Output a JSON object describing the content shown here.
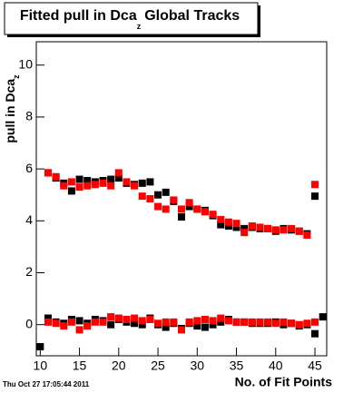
{
  "chart_data": {
    "type": "scatter",
    "title": "Fitted pull in Dca",
    "title_subscript": "z",
    "title_rest": "Global Tracks",
    "y_label": "pull in Dca",
    "y_label_subscript": "z",
    "x_label": "No. of Fit Points",
    "timestamp": "Thu Oct 27 17:05:44 2011",
    "xlim": [
      9.5,
      46.5
    ],
    "ylim": [
      -1.2,
      10.9
    ],
    "xticks": [
      10,
      15,
      20,
      25,
      30,
      35,
      40,
      45
    ],
    "yticks": [
      0,
      2,
      4,
      6,
      8,
      10
    ],
    "series": [
      {
        "color": "#000000",
        "x": [
          10,
          11,
          12,
          13,
          14,
          15,
          16,
          17,
          18,
          19,
          20,
          21,
          22,
          23,
          24,
          25,
          26,
          27,
          28,
          29,
          30,
          31,
          32,
          33,
          34,
          35,
          36,
          37,
          38,
          39,
          40,
          41,
          42,
          43,
          44,
          45,
          46
        ],
        "values": [
          -0.85,
          0.25,
          0.1,
          0.05,
          0.2,
          0.15,
          0.05,
          0.2,
          0.15,
          0.0,
          0.2,
          0.1,
          0.05,
          0.0,
          0.25,
          0.0,
          -0.1,
          0.05,
          -0.15,
          0.05,
          -0.05,
          -0.1,
          0.0,
          0.1,
          0.2,
          0.1,
          0.1,
          0.05,
          0.05,
          0.05,
          0.1,
          0.0,
          0.05,
          -0.05,
          0.0,
          -0.35,
          0.3
        ]
      },
      {
        "color": "#ff0000",
        "x": [
          11,
          12,
          13,
          14,
          15,
          16,
          17,
          18,
          19,
          20,
          21,
          22,
          23,
          24,
          25,
          26,
          27,
          28,
          29,
          30,
          31,
          32,
          33,
          34,
          35,
          36,
          37,
          38,
          39,
          40,
          41,
          42,
          43,
          44,
          45
        ],
        "values": [
          0.1,
          0.05,
          -0.05,
          0.1,
          -0.2,
          -0.05,
          0.1,
          0.1,
          0.3,
          0.25,
          0.2,
          0.25,
          0.15,
          0.2,
          0.05,
          0.1,
          0.1,
          -0.2,
          0.1,
          0.15,
          0.2,
          0.15,
          0.25,
          0.15,
          0.1,
          0.1,
          0.1,
          0.1,
          0.1,
          0.05,
          0.1,
          0.05,
          0.0,
          0.05,
          0.1
        ]
      },
      {
        "color": "#000000",
        "x": [
          11,
          12,
          13,
          14,
          15,
          16,
          17,
          18,
          19,
          20,
          21,
          22,
          23,
          24,
          25,
          26,
          27,
          28,
          29,
          30,
          31,
          32,
          33,
          34,
          35,
          36,
          37,
          38,
          39,
          40,
          41,
          42,
          43,
          44,
          45
        ],
        "values": [
          5.85,
          5.65,
          5.45,
          5.15,
          5.6,
          5.55,
          5.5,
          5.55,
          5.6,
          5.65,
          5.45,
          5.4,
          5.45,
          5.5,
          5.0,
          5.1,
          4.75,
          4.15,
          4.55,
          4.45,
          4.4,
          4.2,
          3.85,
          3.8,
          3.75,
          3.7,
          3.75,
          3.7,
          3.7,
          3.6,
          3.7,
          3.65,
          3.6,
          3.5,
          4.95
        ]
      },
      {
        "color": "#ff0000",
        "x": [
          11,
          12,
          13,
          14,
          15,
          16,
          17,
          18,
          19,
          20,
          21,
          22,
          23,
          24,
          25,
          26,
          27,
          28,
          29,
          30,
          31,
          32,
          33,
          34,
          35,
          36,
          37,
          38,
          39,
          40,
          41,
          42,
          43,
          44,
          45
        ],
        "values": [
          5.85,
          5.7,
          5.35,
          5.5,
          5.3,
          5.35,
          5.4,
          5.45,
          5.35,
          5.85,
          5.5,
          5.35,
          4.95,
          4.85,
          4.55,
          4.45,
          4.8,
          4.45,
          4.7,
          4.45,
          4.35,
          4.25,
          4.05,
          3.95,
          3.9,
          3.55,
          3.8,
          3.75,
          3.7,
          3.65,
          3.65,
          3.7,
          3.6,
          3.45,
          5.4
        ]
      }
    ]
  }
}
